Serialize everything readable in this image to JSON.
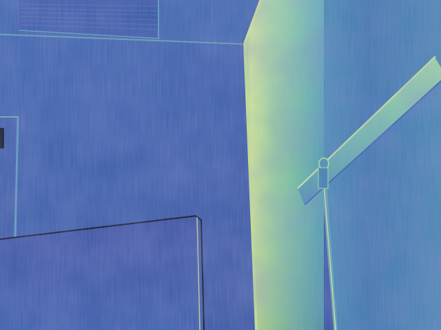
{
  "image": {
    "kind": "false-color thermal / depth-style indoor view",
    "palette": {
      "cool_deep": "#3b3f96",
      "cool": "#3a5fa8",
      "mid": "#3f8fb0",
      "warm": "#7fc8a0",
      "hot": "#d8ec8a",
      "edge_dark": "#0a0a14"
    },
    "elements": [
      "ceiling",
      "ceiling-vent-grille",
      "back-wall",
      "left-door-frame",
      "bright-column",
      "diagonal-pipe",
      "pipe-clamp",
      "vertical-conduit",
      "table-surface",
      "right-wall"
    ]
  }
}
